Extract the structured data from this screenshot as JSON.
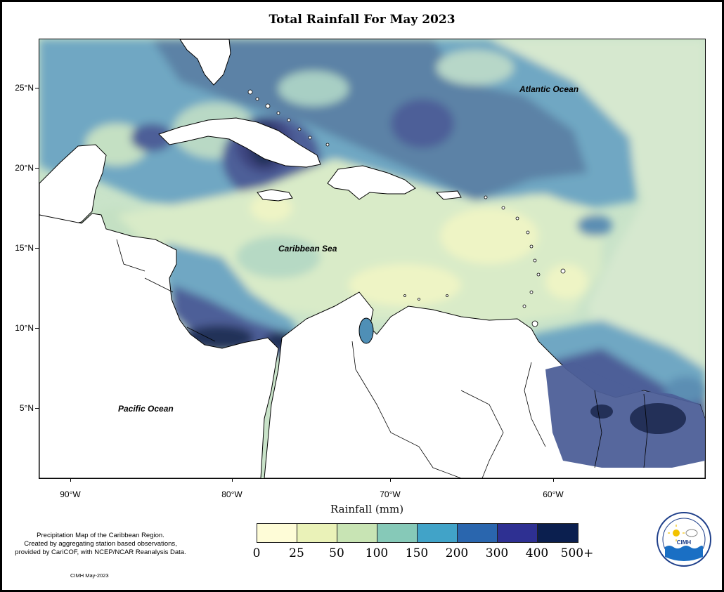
{
  "title": "Total Rainfall For May 2023",
  "map": {
    "labels": {
      "atlantic": "Atlantic Ocean",
      "caribbean": "Caribbean Sea",
      "pacific": "Pacific Ocean"
    },
    "y_axis": [
      "25°N",
      "20°N",
      "15°N",
      "10°N",
      "5°N"
    ],
    "x_axis": [
      "90°W",
      "80°W",
      "70°W",
      "60°W"
    ]
  },
  "legend": {
    "title": "Rainfall (mm)",
    "ticks": [
      "0",
      "25",
      "50",
      "100",
      "150",
      "200",
      "300",
      "400",
      "500+"
    ],
    "colors": [
      "#fefcd7",
      "#eaf2b8",
      "#c8e4b4",
      "#86c9b8",
      "#41a3c8",
      "#2a66ae",
      "#2e3092",
      "#0b1f4f"
    ]
  },
  "footer": {
    "line1": "Precipitation Map of the Caribbean Region.",
    "line2": "Created by aggregating station based observations,",
    "line3": "provided by CariCOF, with NCEP/NCAR Reanalysis Data.",
    "credit": "CIMH May-2023"
  },
  "logo": {
    "text": "CIMH",
    "icon": "cimh-logo-icon"
  }
}
